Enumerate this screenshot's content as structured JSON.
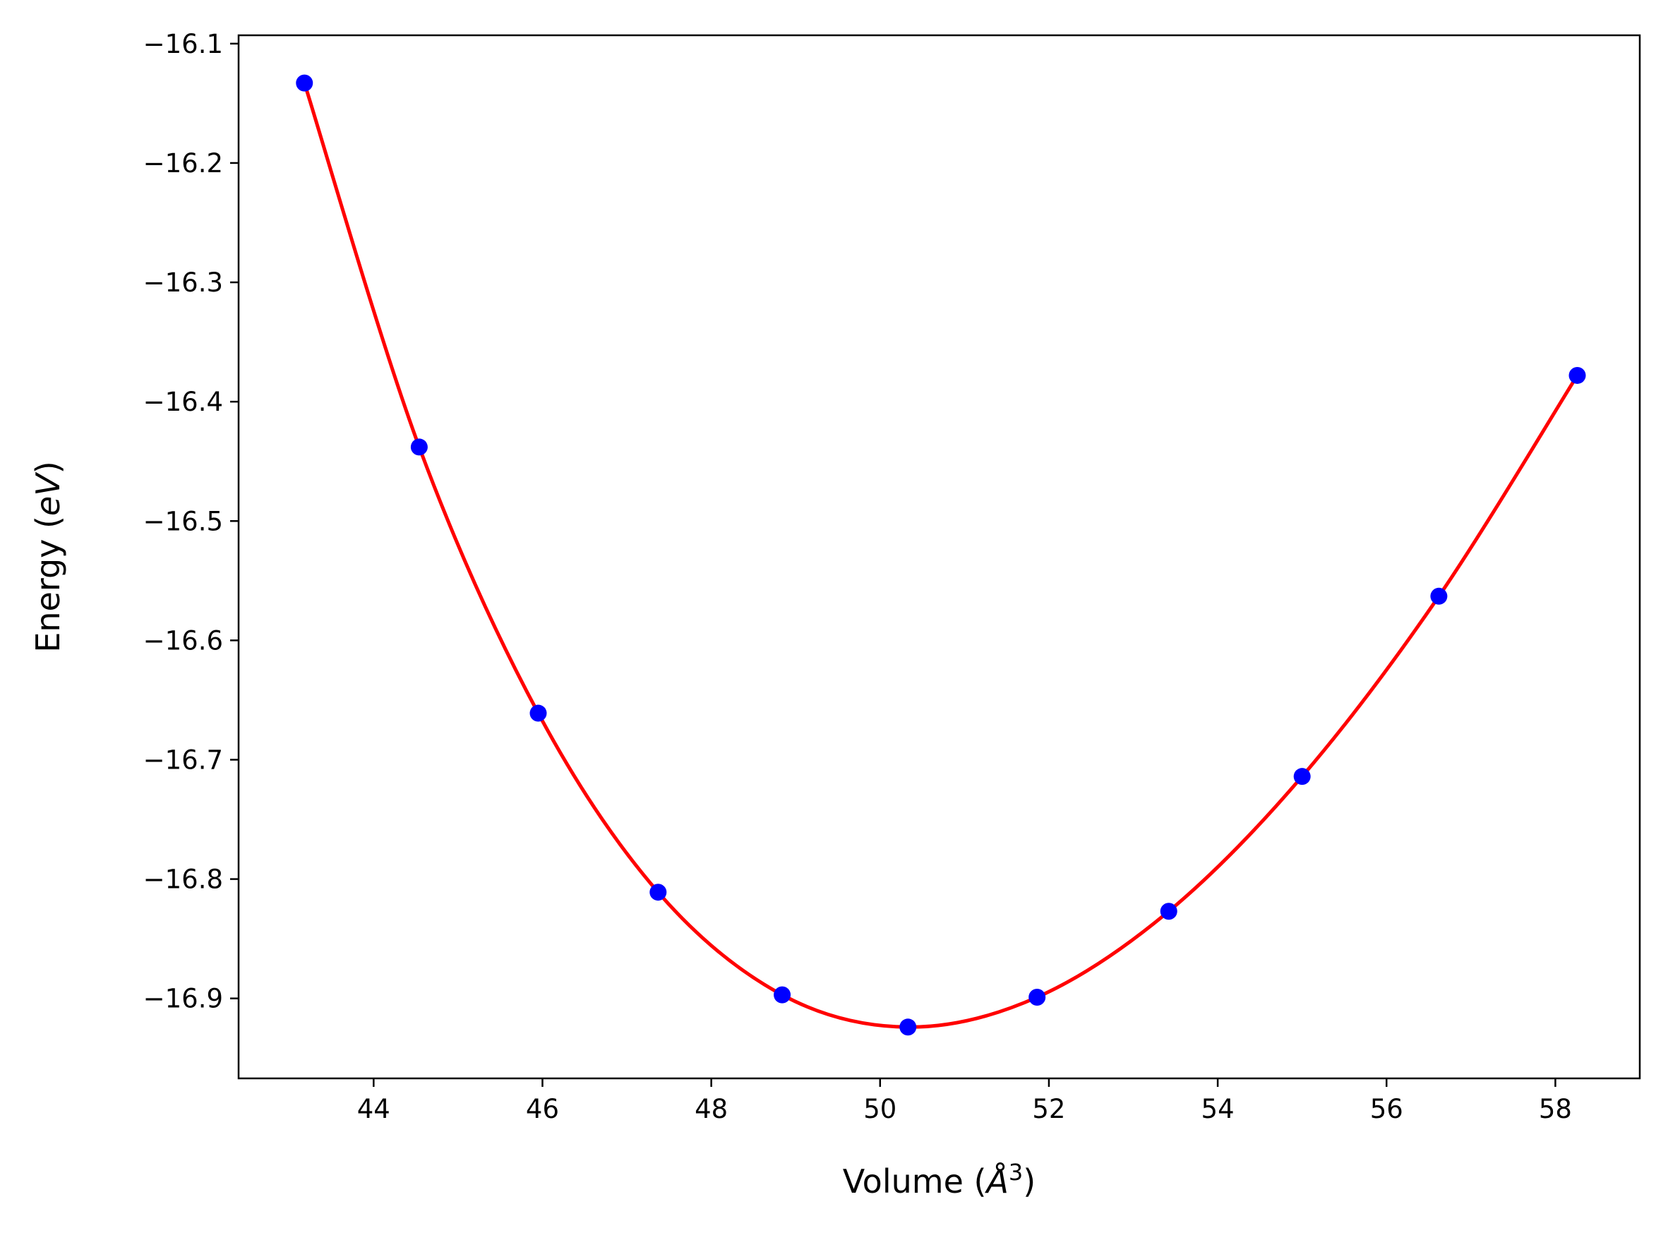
{
  "chart_data": {
    "type": "scatter",
    "xlabel": {
      "prefix": "Volume (",
      "symbol": "Å",
      "superscript": "3",
      "suffix": ")"
    },
    "ylabel": {
      "prefix": "Energy (",
      "unit": "eV",
      "suffix": ")"
    },
    "xlim": [
      42.4,
      59.0
    ],
    "ylim": [
      -16.967,
      -16.093
    ],
    "xticks": [
      44,
      46,
      48,
      50,
      52,
      54,
      56,
      58
    ],
    "xtick_labels": [
      "44",
      "46",
      "48",
      "50",
      "52",
      "54",
      "56",
      "58"
    ],
    "yticks": [
      -16.1,
      -16.2,
      -16.3,
      -16.4,
      -16.5,
      -16.6,
      -16.7,
      -16.8,
      -16.9
    ],
    "ytick_labels": [
      "−16.1",
      "−16.2",
      "−16.3",
      "−16.4",
      "−16.5",
      "−16.6",
      "−16.7",
      "−16.8",
      "−16.9"
    ],
    "grid": false,
    "series": [
      {
        "kind": "points",
        "color": "#0000ff",
        "x": [
          43.18,
          44.54,
          45.95,
          47.37,
          48.84,
          50.33,
          51.86,
          53.42,
          55.0,
          56.62,
          58.26
        ],
        "y": [
          -16.133,
          -16.438,
          -16.661,
          -16.811,
          -16.897,
          -16.924,
          -16.899,
          -16.827,
          -16.714,
          -16.563,
          -16.378
        ]
      },
      {
        "kind": "fit-curve",
        "color": "#ff0000",
        "x": [
          43.18,
          44.54,
          45.95,
          47.37,
          48.84,
          50.33,
          51.86,
          53.42,
          55.0,
          56.62,
          58.26
        ],
        "y": [
          -16.133,
          -16.438,
          -16.661,
          -16.811,
          -16.897,
          -16.924,
          -16.899,
          -16.827,
          -16.714,
          -16.563,
          -16.378
        ]
      }
    ]
  }
}
